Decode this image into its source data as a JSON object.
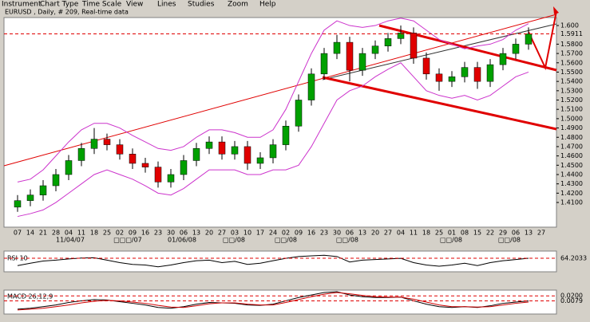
{
  "menu": [
    "Instrument",
    "Chart Type",
    "Time Scale",
    "View",
    "Lines",
    "Studies",
    "Zoom",
    "Help"
  ],
  "header": {
    "title": "EURUSD , Daily, # 209, Real-time data"
  },
  "period_labels": [
    "11/04/07",
    "□□□/07",
    "01/06/08",
    "□□/08",
    "□□/08",
    "□□/08",
    "□□/08",
    "□□/08"
  ],
  "chart_data": [
    {
      "type": "candlestick",
      "categories": [
        "07",
        "14",
        "21",
        "28",
        "04",
        "11",
        "18",
        "25",
        "02",
        "09",
        "16",
        "23",
        "30",
        "06",
        "13",
        "20",
        "27",
        "03",
        "10",
        "17",
        "24",
        "02",
        "09",
        "16",
        "23",
        "30",
        "06",
        "13",
        "20",
        "27",
        "04",
        "11",
        "18",
        "25",
        "01",
        "08",
        "15",
        "22",
        "29",
        "06",
        "13",
        "27"
      ],
      "open": [
        1.405,
        1.412,
        1.418,
        1.428,
        1.44,
        1.455,
        1.468,
        1.478,
        1.472,
        1.462,
        1.452,
        1.448,
        1.432,
        1.44,
        1.455,
        1.468,
        1.475,
        1.462,
        1.47,
        1.452,
        1.458,
        1.472,
        1.492,
        1.52,
        1.548,
        1.57,
        1.582,
        1.552,
        1.57,
        1.578,
        1.586,
        1.592,
        1.565,
        1.548,
        1.54,
        1.545,
        1.555,
        1.54,
        1.558,
        1.57,
        1.58,
        null
      ],
      "high": [
        1.418,
        1.424,
        1.434,
        1.446,
        1.461,
        1.474,
        1.49,
        1.484,
        1.478,
        1.468,
        1.458,
        1.454,
        1.446,
        1.461,
        1.474,
        1.481,
        1.481,
        1.476,
        1.476,
        1.464,
        1.478,
        1.498,
        1.526,
        1.554,
        1.576,
        1.59,
        1.588,
        1.576,
        1.584,
        1.592,
        1.6,
        1.598,
        1.571,
        1.554,
        1.551,
        1.561,
        1.561,
        1.564,
        1.576,
        1.586,
        1.598,
        null
      ],
      "low": [
        1.4,
        1.406,
        1.412,
        1.422,
        1.434,
        1.449,
        1.462,
        1.466,
        1.456,
        1.446,
        1.442,
        1.426,
        1.426,
        1.434,
        1.449,
        1.462,
        1.456,
        1.456,
        1.445,
        1.446,
        1.452,
        1.466,
        1.486,
        1.514,
        1.542,
        1.564,
        1.54,
        1.546,
        1.564,
        1.572,
        1.58,
        1.559,
        1.542,
        1.53,
        1.534,
        1.539,
        1.532,
        1.534,
        1.552,
        1.564,
        1.574,
        null
      ],
      "close": [
        1.412,
        1.418,
        1.428,
        1.44,
        1.455,
        1.468,
        1.478,
        1.472,
        1.462,
        1.452,
        1.448,
        1.432,
        1.44,
        1.455,
        1.468,
        1.475,
        1.462,
        1.47,
        1.452,
        1.458,
        1.472,
        1.492,
        1.52,
        1.548,
        1.57,
        1.582,
        1.552,
        1.57,
        1.578,
        1.586,
        1.592,
        1.565,
        1.548,
        1.54,
        1.545,
        1.555,
        1.54,
        1.558,
        1.57,
        1.58,
        1.5911,
        null
      ],
      "up_color": "#00a000",
      "down_color": "#e00000",
      "bands": [
        {
          "color": "#cc33cc",
          "values": [
            1.432,
            1.435,
            1.445,
            1.46,
            1.475,
            1.488,
            1.495,
            1.495,
            1.49,
            1.482,
            1.475,
            1.468,
            1.466,
            1.47,
            1.48,
            1.488,
            1.488,
            1.485,
            1.48,
            1.48,
            1.488,
            1.51,
            1.54,
            1.57,
            1.595,
            1.605,
            1.6,
            1.598,
            1.6,
            1.605,
            1.608,
            1.605,
            1.595,
            1.585,
            1.58,
            1.575,
            1.578,
            1.58,
            1.585,
            1.595,
            1.602,
            null
          ]
        },
        {
          "color": "#cc33cc",
          "values": [
            1.395,
            1.398,
            1.402,
            1.41,
            1.42,
            1.43,
            1.44,
            1.445,
            1.44,
            1.435,
            1.428,
            1.42,
            1.418,
            1.425,
            1.435,
            1.445,
            1.445,
            1.445,
            1.44,
            1.44,
            1.445,
            1.445,
            1.45,
            1.47,
            1.495,
            1.52,
            1.53,
            1.535,
            1.545,
            1.553,
            1.56,
            1.545,
            1.53,
            1.525,
            1.522,
            1.525,
            1.52,
            1.525,
            1.535,
            1.545,
            1.55,
            null
          ]
        }
      ],
      "ylim": [
        1.3835,
        1.6086
      ],
      "yticks": [
        {
          "value": 1.6,
          "label": "1.600"
        },
        {
          "value": 1.58,
          "label": "1.5800"
        },
        {
          "value": 1.57,
          "label": "1.5700"
        },
        {
          "value": 1.56,
          "label": "1.5600"
        },
        {
          "value": 1.55,
          "label": "1.5500"
        },
        {
          "value": 1.54,
          "label": "1.5400"
        },
        {
          "value": 1.53,
          "label": "1.5300"
        },
        {
          "value": 1.52,
          "label": "1.5200"
        },
        {
          "value": 1.51,
          "label": "1.5100"
        },
        {
          "value": 1.5,
          "label": "1.5000"
        },
        {
          "value": 1.49,
          "label": "1.4900"
        },
        {
          "value": 1.48,
          "label": "1.4800"
        },
        {
          "value": 1.47,
          "label": "1.4700"
        },
        {
          "value": 1.46,
          "label": "1.4600"
        },
        {
          "value": 1.45,
          "label": "1.4500"
        },
        {
          "value": 1.44,
          "label": "1.4400"
        },
        {
          "value": 1.43,
          "label": "1.4300"
        },
        {
          "value": 1.42,
          "label": "1.4200"
        },
        {
          "value": 1.41,
          "label": "1.4100"
        }
      ]
    },
    {
      "type": "line",
      "title": "RSI 10",
      "series": [
        {
          "color": "#000000",
          "values": [
            40,
            48,
            55,
            58,
            62,
            65,
            66,
            58,
            50,
            44,
            42,
            36,
            42,
            50,
            56,
            58,
            50,
            54,
            44,
            48,
            56,
            64,
            70,
            72,
            74,
            70,
            52,
            58,
            60,
            62,
            64,
            50,
            42,
            38,
            42,
            48,
            40,
            50,
            56,
            60,
            64.2033,
            null
          ]
        }
      ],
      "ylim": [
        25,
        80
      ]
    },
    {
      "type": "line",
      "title": "MACD 26;12;9",
      "series": [
        {
          "color": "#000000",
          "values": [
            -0.012,
            -0.01,
            -0.006,
            -0.002,
            0.004,
            0.008,
            0.011,
            0.01,
            0.006,
            0.002,
            -0.002,
            -0.008,
            -0.01,
            -0.006,
            0.0,
            0.004,
            0.003,
            0.002,
            -0.002,
            -0.003,
            0.0,
            0.008,
            0.016,
            0.022,
            0.028,
            0.03,
            0.022,
            0.018,
            0.016,
            0.016,
            0.017,
            0.008,
            0.0,
            -0.006,
            -0.008,
            -0.006,
            -0.008,
            -0.004,
            0.002,
            0.005,
            0.0079,
            null
          ]
        },
        {
          "color": "#cc0000",
          "values": [
            -0.014,
            -0.012,
            -0.01,
            -0.006,
            -0.002,
            0.003,
            0.007,
            0.009,
            0.008,
            0.005,
            0.002,
            -0.003,
            -0.007,
            -0.008,
            -0.004,
            0.001,
            0.003,
            0.003,
            0.0,
            -0.002,
            -0.002,
            0.004,
            0.011,
            0.018,
            0.024,
            0.028,
            0.025,
            0.021,
            0.018,
            0.017,
            0.017,
            0.012,
            0.005,
            -0.002,
            -0.006,
            -0.006,
            -0.007,
            -0.006,
            -0.002,
            0.002,
            0.005,
            null
          ]
        }
      ],
      "ylim": [
        -0.02,
        0.03
      ],
      "yticks": [
        {
          "value": 0.02,
          "label": "0.0200"
        }
      ]
    }
  ]
}
